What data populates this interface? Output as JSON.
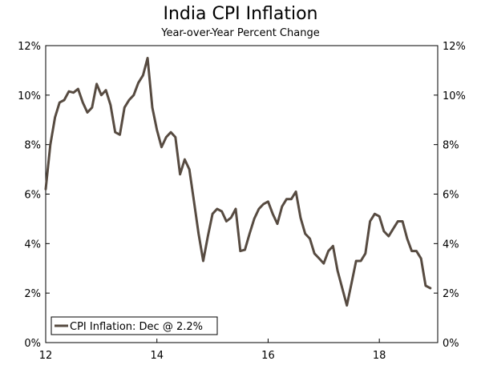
{
  "chart_data": {
    "type": "line",
    "title": "India CPI Inflation",
    "subtitle": "Year-over-Year Percent Change",
    "xlabel": "",
    "ylabel": "",
    "x_tick_labels": [
      "12",
      "14",
      "16",
      "18"
    ],
    "x_tick_values": [
      2012,
      2014,
      2016,
      2018
    ],
    "xlim": [
      2012.0,
      2019.05
    ],
    "y_tick_labels": [
      "0%",
      "2%",
      "4%",
      "6%",
      "8%",
      "10%",
      "12%"
    ],
    "y_tick_values": [
      0,
      2,
      4,
      6,
      8,
      10,
      12
    ],
    "ylim": [
      0,
      12
    ],
    "grid": false,
    "legend_position": "bottom-left",
    "series": [
      {
        "name": "CPI Inflation: Dec @ 2.2%",
        "color": "#574b41",
        "x": [
          2012.0,
          2012.083,
          2012.167,
          2012.25,
          2012.333,
          2012.417,
          2012.5,
          2012.583,
          2012.667,
          2012.75,
          2012.833,
          2012.917,
          2013.0,
          2013.083,
          2013.167,
          2013.25,
          2013.333,
          2013.417,
          2013.5,
          2013.583,
          2013.667,
          2013.75,
          2013.833,
          2013.917,
          2014.0,
          2014.083,
          2014.167,
          2014.25,
          2014.333,
          2014.417,
          2014.5,
          2014.583,
          2014.667,
          2014.75,
          2014.833,
          2014.917,
          2015.0,
          2015.083,
          2015.167,
          2015.25,
          2015.333,
          2015.417,
          2015.5,
          2015.583,
          2015.667,
          2015.75,
          2015.833,
          2015.917,
          2016.0,
          2016.083,
          2016.167,
          2016.25,
          2016.333,
          2016.417,
          2016.5,
          2016.583,
          2016.667,
          2016.75,
          2016.833,
          2016.917,
          2017.0,
          2017.083,
          2017.167,
          2017.25,
          2017.333,
          2017.417,
          2017.5,
          2017.583,
          2017.667,
          2017.75,
          2017.833,
          2017.917,
          2018.0,
          2018.083,
          2018.167,
          2018.25,
          2018.333,
          2018.417,
          2018.5,
          2018.583,
          2018.667,
          2018.75,
          2018.833,
          2018.917
        ],
        "values": [
          6.2,
          8.0,
          9.1,
          9.7,
          9.8,
          10.15,
          10.1,
          10.25,
          9.7,
          9.3,
          9.5,
          10.45,
          10.0,
          10.2,
          9.6,
          8.5,
          8.4,
          9.5,
          9.8,
          10.0,
          10.5,
          10.8,
          11.5,
          9.5,
          8.6,
          7.9,
          8.3,
          8.5,
          8.3,
          6.8,
          7.4,
          7.0,
          5.7,
          4.4,
          3.3,
          4.3,
          5.2,
          5.4,
          5.3,
          4.9,
          5.05,
          5.4,
          3.7,
          3.75,
          4.4,
          5.0,
          5.4,
          5.6,
          5.7,
          5.2,
          4.8,
          5.5,
          5.8,
          5.8,
          6.1,
          5.05,
          4.4,
          4.2,
          3.6,
          3.4,
          3.2,
          3.7,
          3.9,
          2.9,
          2.2,
          1.5,
          2.4,
          3.3,
          3.3,
          3.6,
          4.9,
          5.2,
          5.1,
          4.5,
          4.3,
          4.6,
          4.9,
          4.9,
          4.2,
          3.7,
          3.7,
          3.4,
          2.3,
          2.2
        ]
      }
    ]
  }
}
